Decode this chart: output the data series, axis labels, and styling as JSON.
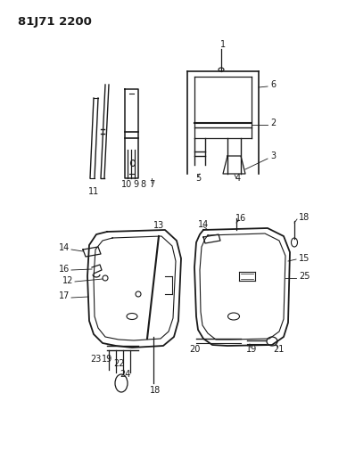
{
  "title": "81J71 2200",
  "bg_color": "#ffffff",
  "line_color": "#1a1a1a",
  "text_color": "#1a1a1a",
  "title_fontsize": 9.5,
  "label_fontsize": 7,
  "fig_width": 3.98,
  "fig_height": 5.33,
  "dpi": 100
}
